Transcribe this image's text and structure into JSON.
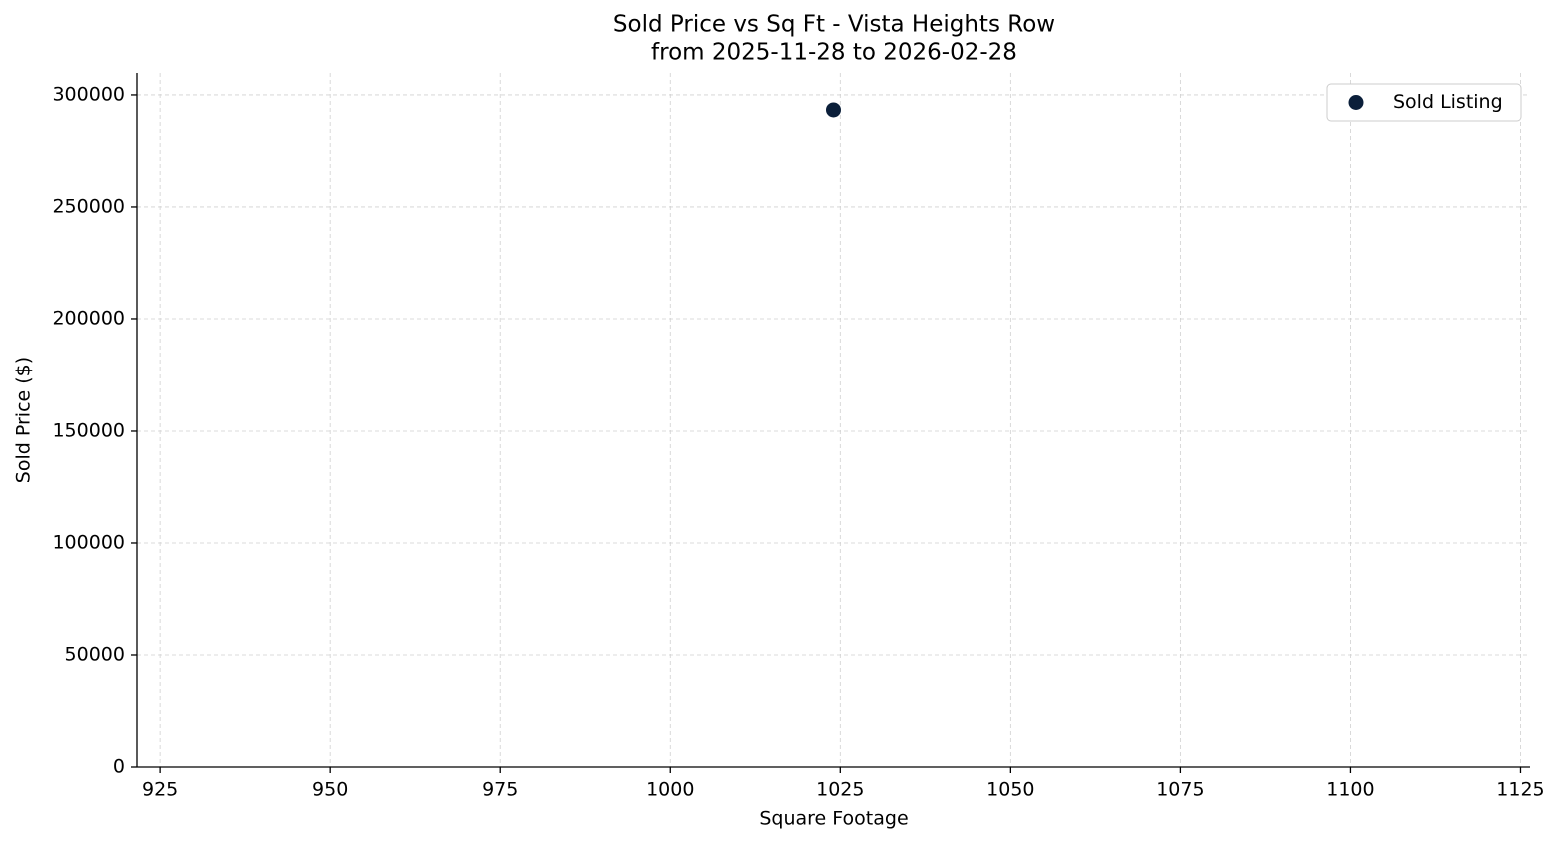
{
  "chart_data": {
    "type": "scatter",
    "title": "Sold Price vs Sq Ft - Vista Heights Row",
    "subtitle": "from 2025-11-28 to 2026-02-28",
    "x_label": "Square Footage",
    "y_label": "Sold Price ($)",
    "series": [
      {
        "name": "Sold Listing",
        "color": "#0b1f3a",
        "x": [
          1024
        ],
        "values": [
          293300
        ]
      }
    ],
    "xlim": [
      921.6,
      1126.4
    ],
    "xticks": [
      925,
      950,
      975,
      1000,
      1025,
      1050,
      1075,
      1100,
      1125
    ],
    "ylim": [
      0,
      309800
    ],
    "yticks": [
      0,
      50000,
      100000,
      150000,
      200000,
      250000,
      300000
    ],
    "grid": true,
    "legend": "upper right"
  }
}
